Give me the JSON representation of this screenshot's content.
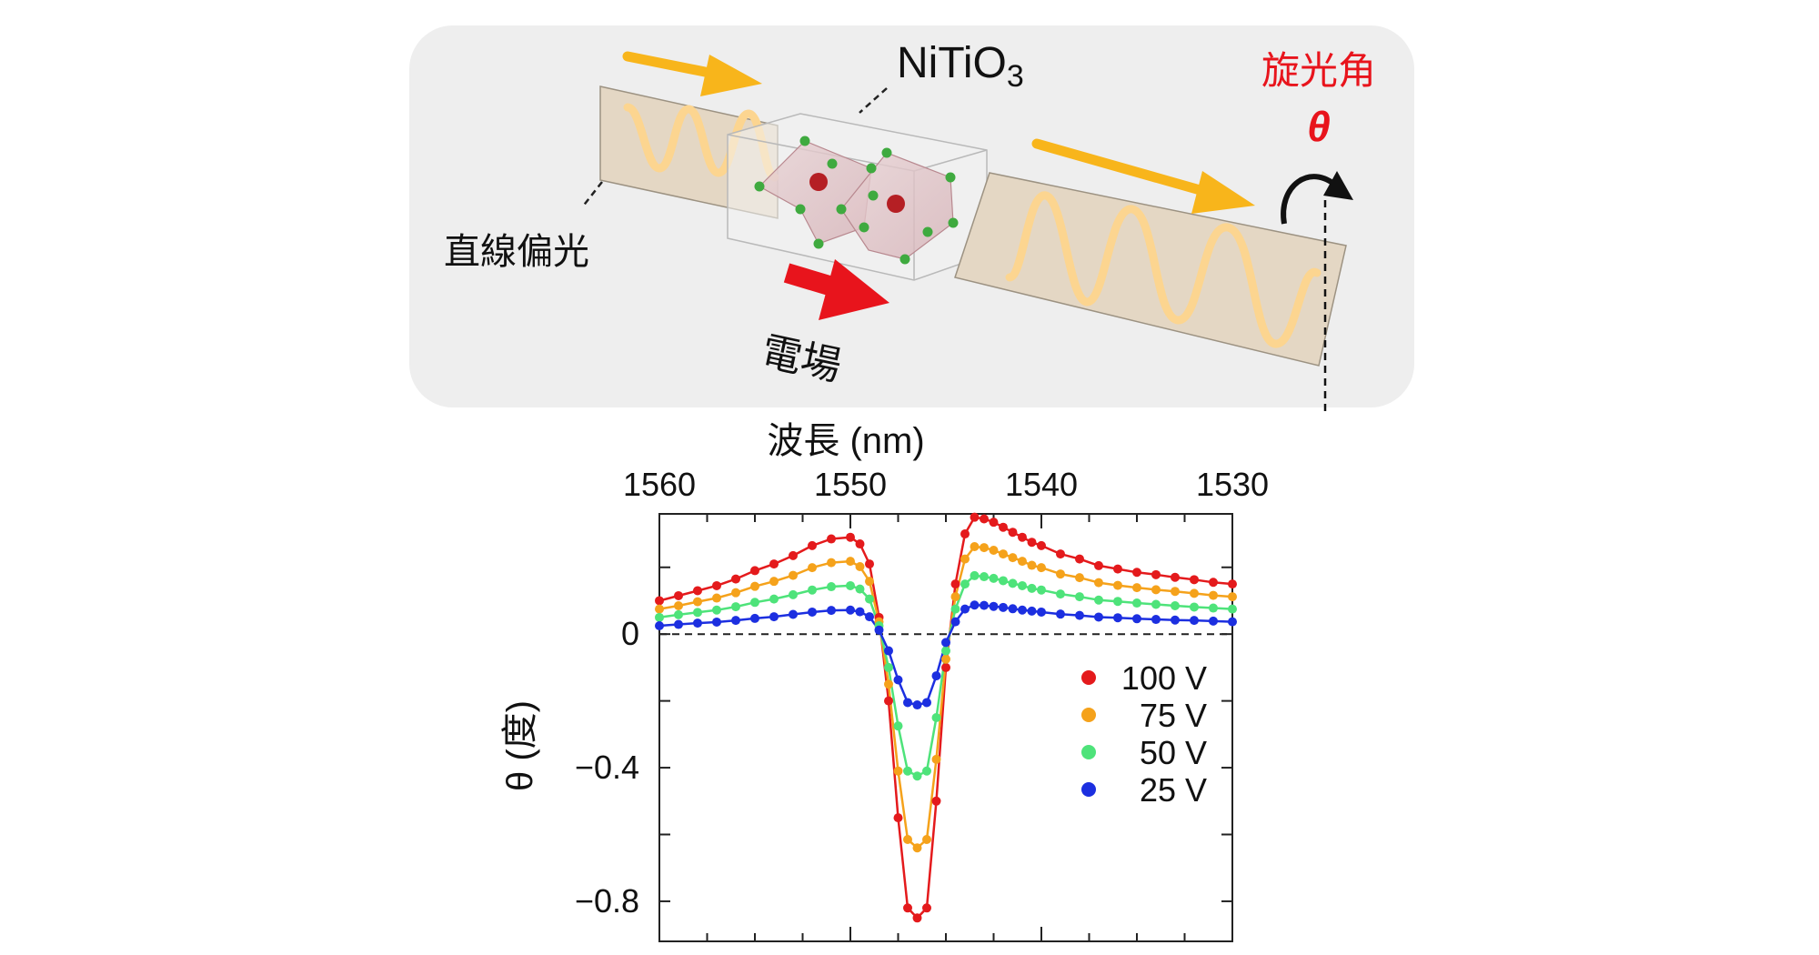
{
  "diagram": {
    "material_label": "NiTiO",
    "material_subscript": "3",
    "rotation_label": "旋光角",
    "rotation_symbol": "θ",
    "input_label": "直線偏光",
    "field_label": "電場"
  },
  "colors": {
    "panel_bg": "#eeeeee",
    "light_arrow": "#f8b51b",
    "field_arrow": "#e8141c",
    "rotation_text": "#e8141c",
    "wave": "#fcd590"
  },
  "chart_data": {
    "type": "scatter",
    "title": "",
    "xlabel": "波長 (nm)",
    "ylabel": "θ (度)",
    "xlim": [
      1560,
      1530
    ],
    "ylim": [
      -0.92,
      0.36
    ],
    "x_axis_position": "top",
    "x_ticks": [
      1560,
      1550,
      1540,
      1530
    ],
    "y_ticks": [
      0,
      -0.4,
      -0.8
    ],
    "y_tick_labels": [
      "0",
      "−0.4",
      "−0.8"
    ],
    "zero_line": "dashed",
    "legend_position": "center-right",
    "x": [
      1560,
      1559,
      1558,
      1557,
      1556,
      1555,
      1554,
      1553,
      1552,
      1551,
      1550,
      1549.5,
      1549,
      1548.5,
      1548,
      1547.5,
      1547,
      1546.5,
      1546,
      1545.5,
      1545,
      1544.5,
      1544,
      1543.5,
      1543,
      1542.5,
      1542,
      1541.5,
      1541,
      1540.5,
      1540,
      1539,
      1538,
      1537,
      1536,
      1535,
      1534,
      1533,
      1532,
      1531,
      1530
    ],
    "series": [
      {
        "name": "100 V",
        "color": "#e41a1c",
        "values": [
          0.1,
          0.115,
          0.13,
          0.145,
          0.165,
          0.19,
          0.21,
          0.235,
          0.265,
          0.285,
          0.29,
          0.27,
          0.21,
          0.05,
          -0.2,
          -0.55,
          -0.82,
          -0.85,
          -0.82,
          -0.5,
          -0.1,
          0.15,
          0.3,
          0.35,
          0.345,
          0.335,
          0.32,
          0.305,
          0.29,
          0.275,
          0.265,
          0.24,
          0.225,
          0.205,
          0.195,
          0.185,
          0.178,
          0.17,
          0.163,
          0.155,
          0.15
        ]
      },
      {
        "name": "75 V",
        "color": "#f5a21b",
        "values": [
          0.075,
          0.085,
          0.097,
          0.108,
          0.124,
          0.143,
          0.158,
          0.176,
          0.199,
          0.214,
          0.218,
          0.202,
          0.158,
          0.037,
          -0.15,
          -0.41,
          -0.615,
          -0.64,
          -0.615,
          -0.375,
          -0.075,
          0.112,
          0.225,
          0.262,
          0.259,
          0.251,
          0.24,
          0.229,
          0.218,
          0.206,
          0.199,
          0.18,
          0.169,
          0.154,
          0.146,
          0.139,
          0.133,
          0.128,
          0.122,
          0.116,
          0.112
        ]
      },
      {
        "name": "50 V",
        "color": "#4ee37a",
        "values": [
          0.05,
          0.058,
          0.065,
          0.072,
          0.082,
          0.095,
          0.105,
          0.118,
          0.132,
          0.142,
          0.145,
          0.135,
          0.105,
          0.025,
          -0.1,
          -0.275,
          -0.41,
          -0.425,
          -0.41,
          -0.25,
          -0.05,
          0.075,
          0.15,
          0.175,
          0.172,
          0.167,
          0.16,
          0.152,
          0.145,
          0.137,
          0.132,
          0.12,
          0.112,
          0.102,
          0.098,
          0.093,
          0.089,
          0.085,
          0.081,
          0.078,
          0.075
        ]
      },
      {
        "name": "25 V",
        "color": "#1c2fe0",
        "values": [
          0.025,
          0.029,
          0.033,
          0.036,
          0.041,
          0.047,
          0.052,
          0.059,
          0.066,
          0.071,
          0.072,
          0.067,
          0.052,
          0.012,
          -0.05,
          -0.137,
          -0.205,
          -0.212,
          -0.205,
          -0.125,
          -0.025,
          0.037,
          0.075,
          0.087,
          0.086,
          0.083,
          0.08,
          0.076,
          0.072,
          0.069,
          0.066,
          0.06,
          0.056,
          0.051,
          0.049,
          0.046,
          0.044,
          0.042,
          0.041,
          0.039,
          0.037
        ]
      }
    ]
  }
}
